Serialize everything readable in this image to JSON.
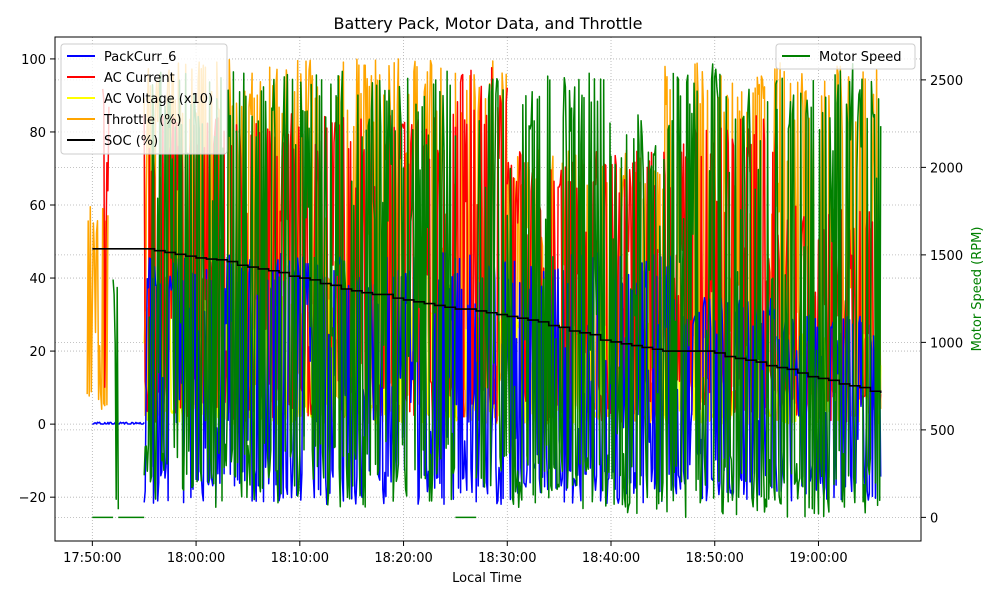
{
  "chart_data": {
    "type": "line",
    "title": "Battery Pack, Motor Data, and Throttle",
    "xlabel": "Local Time",
    "ylabel_left": "",
    "ylabel_right": "Motor Speed (RPM)",
    "ylabel_right_color": "#008000",
    "x_range": [
      "17:46:24",
      "19:09:53"
    ],
    "x_ticks": [
      "17:50:00",
      "18:00:00",
      "18:10:00",
      "18:20:00",
      "18:30:00",
      "18:40:00",
      "18:50:00",
      "19:00:00"
    ],
    "y_left_range": [
      -32,
      106
    ],
    "y_left_ticks": [
      -20,
      0,
      20,
      40,
      60,
      80,
      100
    ],
    "y_right_range": [
      -135,
      2745
    ],
    "y_right_ticks": [
      0,
      500,
      1000,
      1500,
      2000,
      2500
    ],
    "grid": true,
    "legend_left": {
      "position": "upper-left",
      "entries": [
        {
          "name": "PackCurr_6",
          "color": "#0000ff"
        },
        {
          "name": "AC Current",
          "color": "#ff0000"
        },
        {
          "name": "AC Voltage (x10)",
          "color": "#ffff00"
        },
        {
          "name": "Throttle (%)",
          "color": "#ffa500"
        },
        {
          "name": "SOC (%)",
          "color": "#000000"
        }
      ]
    },
    "legend_right": {
      "position": "upper-right",
      "entries": [
        {
          "name": "Motor Speed",
          "color": "#008000"
        }
      ]
    },
    "series": [
      {
        "name": "SOC (%)",
        "axis": "left",
        "color": "#000000",
        "style": "step",
        "x": [
          "17:50:00",
          "17:55:00",
          "17:56:00",
          "17:57:00",
          "17:58:00",
          "17:59:00",
          "18:00:00",
          "18:01:00",
          "18:02:00",
          "18:03:00",
          "18:04:00",
          "18:05:00",
          "18:06:00",
          "18:07:00",
          "18:08:00",
          "18:09:00",
          "18:10:00",
          "18:11:00",
          "18:12:00",
          "18:13:00",
          "18:14:00",
          "18:15:00",
          "18:16:00",
          "18:17:00",
          "18:18:00",
          "18:19:00",
          "18:20:00",
          "18:21:00",
          "18:22:00",
          "18:23:00",
          "18:24:00",
          "18:25:00",
          "18:26:00",
          "18:27:00",
          "18:28:00",
          "18:29:00",
          "18:30:00",
          "18:31:00",
          "18:32:00",
          "18:33:00",
          "18:34:00",
          "18:35:00",
          "18:36:00",
          "18:37:00",
          "18:38:00",
          "18:39:00",
          "18:40:00",
          "18:41:00",
          "18:42:00",
          "18:43:00",
          "18:44:00",
          "18:45:00",
          "18:46:00",
          "18:47:00",
          "18:48:00",
          "18:49:00",
          "18:50:00",
          "18:51:00",
          "18:52:00",
          "18:53:00",
          "18:54:00",
          "18:55:00",
          "18:56:00",
          "18:57:00",
          "18:58:00",
          "18:59:00",
          "19:00:00",
          "19:01:00",
          "19:02:00",
          "19:03:00",
          "19:04:00",
          "19:05:00",
          "19:06:00"
        ],
        "values": [
          48,
          48,
          47.5,
          47,
          46.5,
          46,
          45.5,
          45.2,
          45,
          44.5,
          43.5,
          43,
          42.5,
          42,
          41.5,
          40.5,
          40,
          39.5,
          38.5,
          38,
          37,
          36.5,
          36,
          35.5,
          35.5,
          34.5,
          34,
          33.5,
          33,
          32.5,
          32,
          31.5,
          31.5,
          31,
          30.5,
          30,
          29.5,
          29,
          28.5,
          28,
          27,
          26.5,
          25.5,
          25,
          24.5,
          23,
          22.5,
          22,
          21.5,
          21,
          20.5,
          20,
          20,
          20,
          20,
          20,
          19.5,
          18.5,
          18,
          17.5,
          17,
          16,
          15.5,
          15,
          14,
          13,
          12.5,
          12,
          11,
          10.5,
          10,
          9,
          8.5
        ]
      },
      {
        "name": "Throttle (%)",
        "axis": "left",
        "color": "#ffa500",
        "style": "oscillating",
        "segments": [
          {
            "x": [
              "17:49:30",
              "17:51:30"
            ],
            "min": 0,
            "max": 60
          },
          {
            "x": [
              "17:55:00",
              "18:25:00"
            ],
            "min": 0,
            "max": 100
          },
          {
            "x": [
              "18:25:00",
              "18:30:00"
            ],
            "min": 0,
            "max": 100
          },
          {
            "x": [
              "18:30:00",
              "18:45:00"
            ],
            "min": 0,
            "max": 75
          },
          {
            "x": [
              "18:45:00",
              "18:56:00"
            ],
            "min": 0,
            "max": 100
          },
          {
            "x": [
              "18:56:00",
              "19:06:00"
            ],
            "min": 0,
            "max": 100
          }
        ]
      },
      {
        "name": "AC Voltage (x10)",
        "axis": "left",
        "color": "#ffff00",
        "style": "oscillating",
        "segments": [
          {
            "x": [
              "17:55:00",
              "18:25:00"
            ],
            "min": 0,
            "max": 35
          },
          {
            "x": [
              "18:25:00",
              "18:45:00"
            ],
            "min": 0,
            "max": 30
          },
          {
            "x": [
              "18:45:00",
              "19:06:00"
            ],
            "min": 0,
            "max": 25
          }
        ]
      },
      {
        "name": "AC Current",
        "axis": "left",
        "color": "#ff0000",
        "style": "oscillating",
        "segments": [
          {
            "x": [
              "17:51:00",
              "17:51:40"
            ],
            "min": 0,
            "max": 92
          },
          {
            "x": [
              "17:55:00",
              "18:25:00"
            ],
            "min": 0,
            "max": 85
          },
          {
            "x": [
              "18:25:00",
              "18:30:00"
            ],
            "min": 0,
            "max": 98
          },
          {
            "x": [
              "18:30:00",
              "18:46:00"
            ],
            "min": 0,
            "max": 75
          },
          {
            "x": [
              "18:46:00",
              "18:56:00"
            ],
            "min": 0,
            "max": 85
          },
          {
            "x": [
              "18:56:00",
              "19:06:00"
            ],
            "min": 0,
            "max": 60
          }
        ]
      },
      {
        "name": "PackCurr_6",
        "axis": "left",
        "color": "#0000ff",
        "style": "oscillating",
        "segments": [
          {
            "x": [
              "17:50:00",
              "17:55:00"
            ],
            "min": 0,
            "max": 0.5
          },
          {
            "x": [
              "17:55:00",
              "18:25:00"
            ],
            "min": -22,
            "max": 47
          },
          {
            "x": [
              "18:25:00",
              "18:46:00"
            ],
            "min": -22,
            "max": 47
          },
          {
            "x": [
              "18:46:00",
              "18:56:00"
            ],
            "min": -21,
            "max": 35
          },
          {
            "x": [
              "18:56:00",
              "19:06:00"
            ],
            "min": -21,
            "max": 30
          }
        ]
      },
      {
        "name": "Motor Speed",
        "axis": "right",
        "color": "#008000",
        "style": "oscillating",
        "segments": [
          {
            "x": [
              "17:50:00",
              "17:52:00"
            ],
            "min": 0,
            "max": 0
          },
          {
            "x": [
              "17:52:00",
              "17:52:30"
            ],
            "min": 0,
            "max": 1400
          },
          {
            "x": [
              "17:52:30",
              "17:55:00"
            ],
            "min": 0,
            "max": 0
          },
          {
            "x": [
              "17:55:00",
              "18:25:00"
            ],
            "min": 50,
            "max": 2550
          },
          {
            "x": [
              "18:25:00",
              "18:27:00"
            ],
            "min": 0,
            "max": 0
          },
          {
            "x": [
              "18:27:00",
              "18:40:00"
            ],
            "min": 50,
            "max": 2550
          },
          {
            "x": [
              "18:40:00",
              "18:46:00"
            ],
            "min": 0,
            "max": 2300
          },
          {
            "x": [
              "18:46:00",
              "18:56:00"
            ],
            "min": 0,
            "max": 2600
          },
          {
            "x": [
              "18:56:00",
              "19:06:00"
            ],
            "min": 0,
            "max": 2600
          }
        ]
      }
    ]
  }
}
